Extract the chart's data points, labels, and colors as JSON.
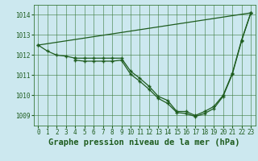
{
  "title": "Graphe pression niveau de la mer (hPa)",
  "bg_color": "#cce8ef",
  "grid_color": "#3a7a3a",
  "line_color": "#1e5c1e",
  "xlim": [
    -0.5,
    23.5
  ],
  "ylim": [
    1008.5,
    1014.5
  ],
  "yticks": [
    1009,
    1010,
    1011,
    1012,
    1013,
    1014
  ],
  "xticks": [
    0,
    1,
    2,
    3,
    4,
    5,
    6,
    7,
    8,
    9,
    10,
    11,
    12,
    13,
    14,
    15,
    16,
    17,
    18,
    19,
    20,
    21,
    22,
    23
  ],
  "series_diag": {
    "x": [
      0,
      23
    ],
    "y": [
      1012.5,
      1014.1
    ]
  },
  "series_flat": {
    "x": [
      0,
      1,
      2,
      3,
      4
    ],
    "y": [
      1012.5,
      1012.2,
      1012.0,
      1011.95,
      1011.85
    ]
  },
  "series_lower1": {
    "x": [
      4,
      5,
      6,
      7,
      8,
      9,
      10,
      11,
      12,
      13,
      14,
      15,
      16,
      17,
      18,
      19,
      20,
      21,
      22,
      23
    ],
    "y": [
      1011.85,
      1011.85,
      1011.85,
      1011.85,
      1011.85,
      1011.85,
      1011.2,
      1010.85,
      1010.45,
      1009.95,
      1009.75,
      1009.2,
      1009.2,
      1009.0,
      1009.2,
      1009.45,
      1010.0,
      1011.1,
      1012.75,
      1014.1
    ]
  },
  "series_lower2": {
    "x": [
      4,
      5,
      6,
      7,
      8,
      9,
      10,
      11,
      12,
      13,
      14,
      15,
      16,
      17,
      18,
      19,
      20,
      21,
      22,
      23
    ],
    "y": [
      1011.75,
      1011.7,
      1011.7,
      1011.7,
      1011.7,
      1011.75,
      1011.05,
      1010.7,
      1010.3,
      1009.85,
      1009.6,
      1009.15,
      1009.1,
      1008.95,
      1009.1,
      1009.35,
      1009.95,
      1011.05,
      1012.7,
      1014.1
    ]
  },
  "title_fontsize": 7.5,
  "tick_fontsize": 5.5
}
